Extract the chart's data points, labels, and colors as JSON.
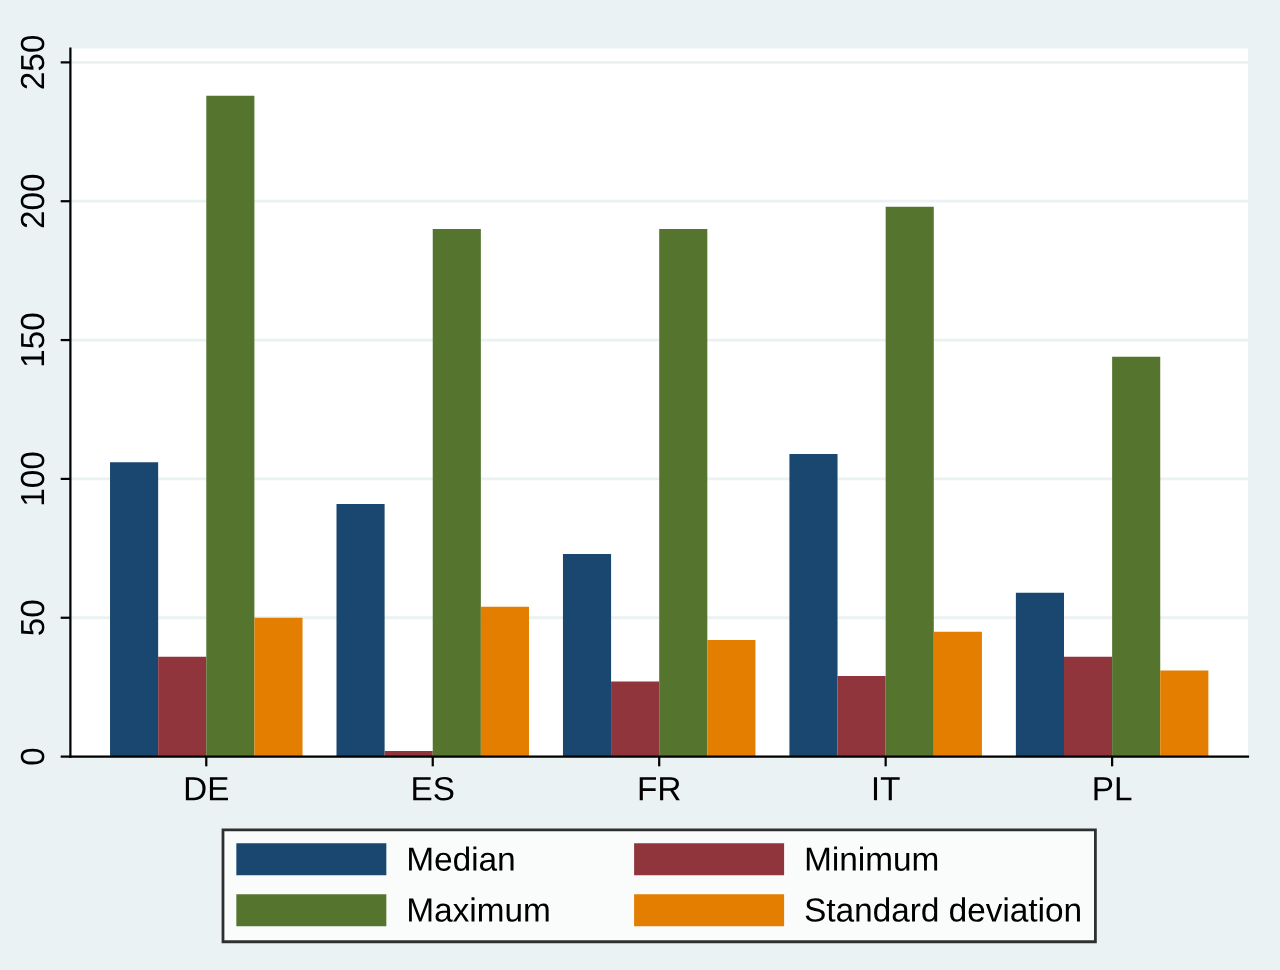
{
  "chart_data": {
    "type": "bar",
    "categories": [
      "DE",
      "ES",
      "FR",
      "IT",
      "PL"
    ],
    "series": [
      {
        "name": "Median",
        "color": "#1a476f",
        "values": [
          106,
          91,
          73,
          109,
          59
        ]
      },
      {
        "name": "Minimum",
        "color": "#90353b",
        "values": [
          36,
          2,
          27,
          29,
          36
        ]
      },
      {
        "name": "Maximum",
        "color": "#55752f",
        "values": [
          238,
          190,
          190,
          198,
          144
        ]
      },
      {
        "name": "Standard deviation",
        "color": "#e37e00",
        "values": [
          50,
          54,
          42,
          45,
          31
        ]
      }
    ],
    "ylim": [
      0,
      255
    ],
    "yticks": [
      0,
      50,
      100,
      150,
      200,
      250
    ],
    "grid": "y",
    "legend": "bottom"
  }
}
